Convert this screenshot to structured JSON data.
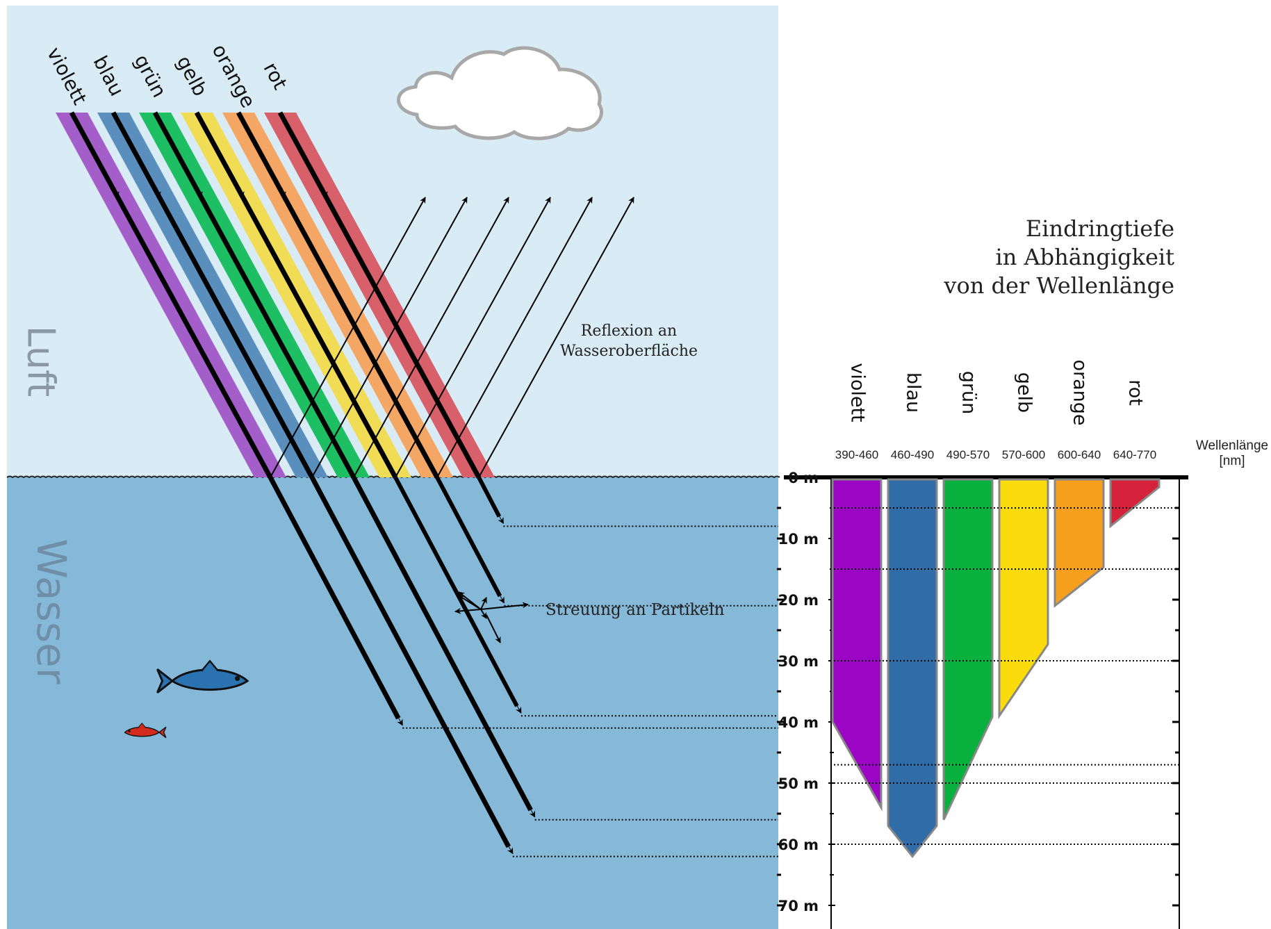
{
  "title_lines": [
    "Eindringtiefe",
    "in Abhängigkeit",
    "von der Wellenlänge"
  ],
  "zones": {
    "air": "Luft",
    "water": "Wasser"
  },
  "annotations": {
    "reflection_lines": [
      "Reflexion an",
      "Wasseroberfläche"
    ],
    "scattering": "Streuung an Partikeln"
  },
  "wavelength_axis_lines": [
    "Wellenlänge",
    "[nm]"
  ],
  "colors": {
    "sky": "#d9ebf5",
    "water": "#86b8d8",
    "cloud_stroke": "#a8a8a8",
    "fish_blue": "#2b72b0",
    "fish_red": "#d52b1e"
  },
  "light_colors": [
    {
      "name": "violett",
      "range": "390-460",
      "beam": "#a45ec9",
      "bar": "#9b05c4",
      "depth_m": 54
    },
    {
      "name": "blau",
      "range": "460-490",
      "beam": "#5a8fbd",
      "bar": "#2f6ca8",
      "depth_m": 62
    },
    {
      "name": "grün",
      "range": "490-570",
      "beam": "#1ebe63",
      "bar": "#08b03e",
      "depth_m": 56
    },
    {
      "name": "gelb",
      "range": "570-600",
      "beam": "#f1dc55",
      "bar": "#fbdb0b",
      "depth_m": 39
    },
    {
      "name": "orange",
      "range": "600-640",
      "beam": "#f4a764",
      "bar": "#f7a01e",
      "depth_m": 21
    },
    {
      "name": "rot",
      "range": "640-770",
      "beam": "#d8606b",
      "bar": "#d6213a",
      "depth_m": 8
    }
  ],
  "depth_axis": {
    "ticks": [
      "0 m",
      "10 m",
      "20 m",
      "30 m",
      "40 m",
      "50 m",
      "60 m",
      "70 m"
    ]
  }
}
